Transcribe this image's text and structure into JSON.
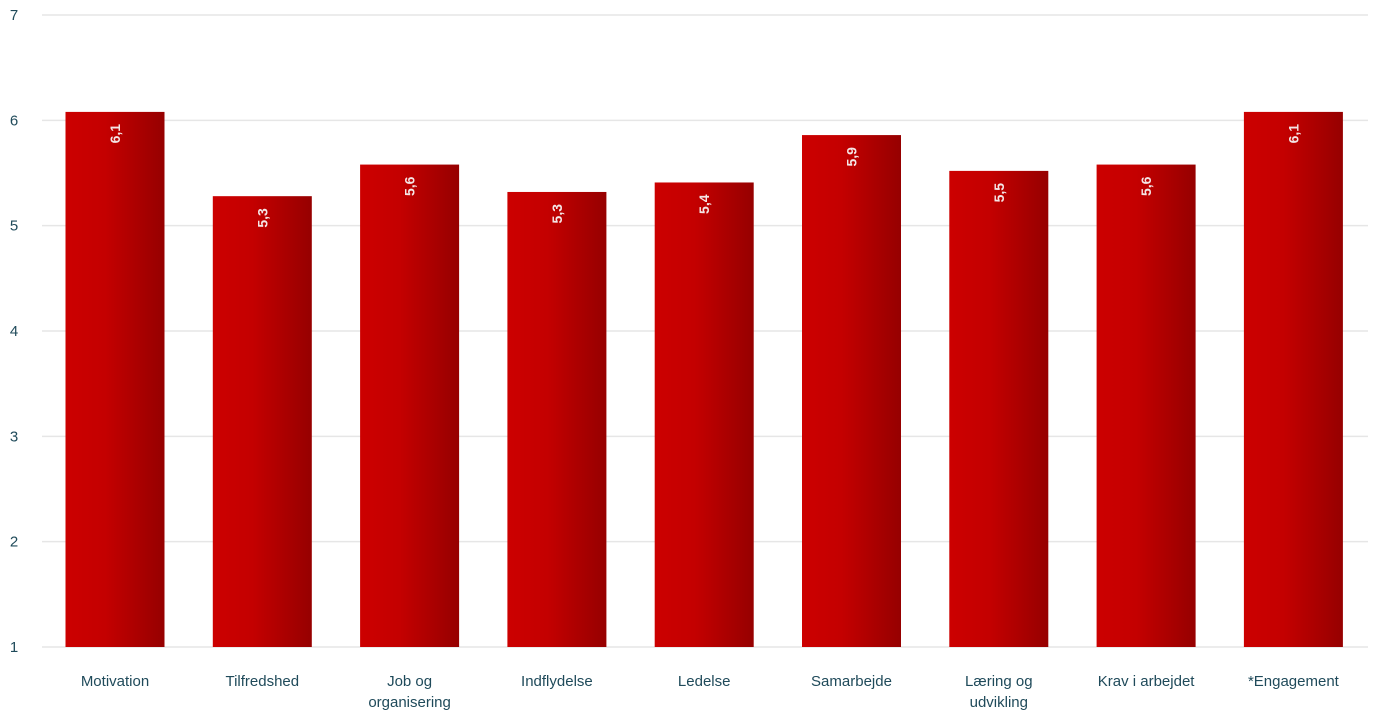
{
  "chart_data": {
    "type": "bar",
    "title": "",
    "xlabel": "",
    "ylabel": "",
    "categories": [
      [
        "Motivation"
      ],
      [
        "Tilfredshed"
      ],
      [
        "Job og",
        "organisering"
      ],
      [
        "Indflydelse"
      ],
      [
        "Ledelse"
      ],
      [
        "Samarbejde"
      ],
      [
        "Læring og",
        "udvikling"
      ],
      [
        "Krav i arbejdet"
      ],
      [
        "*Engagement"
      ]
    ],
    "values": [
      6.08,
      5.28,
      5.58,
      5.32,
      5.41,
      5.86,
      5.52,
      5.58,
      6.08
    ],
    "data_labels": [
      "6,1",
      "5,3",
      "5,6",
      "5,3",
      "5,4",
      "5,9",
      "5,5",
      "5,6",
      "6,1"
    ],
    "ylim": [
      1,
      7
    ],
    "yticks": [
      1,
      2,
      3,
      4,
      5,
      6,
      7
    ],
    "grid": true,
    "legend": "none",
    "colors": {
      "bar_light": "#cc0000",
      "bar_dark": "#960000",
      "grid": "#e6e6e6",
      "text": "#1f4a5a"
    }
  }
}
